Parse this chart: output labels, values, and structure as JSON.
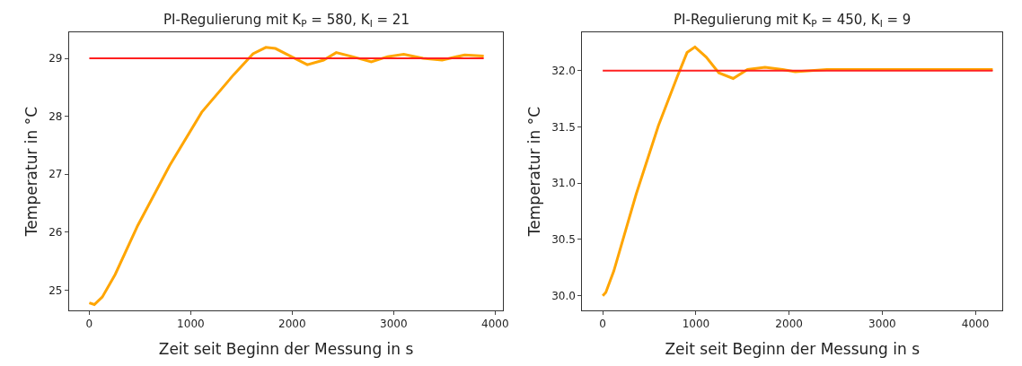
{
  "chart_data": [
    {
      "type": "line",
      "title": "PI-Regulierung mit K$_{P}$ = 580, K$_{I}$ = 21",
      "xlabel": "Zeit seit Beginn der Messung in s",
      "ylabel": "Temperatur in °C",
      "xlim": [
        -200,
        4080
      ],
      "ylim": [
        24.65,
        29.45
      ],
      "xticks": [
        0,
        1000,
        2000,
        3000,
        4000
      ],
      "yticks": [
        25,
        26,
        27,
        28,
        29
      ],
      "grid": false,
      "marker": "none",
      "line_style": "solid",
      "series": [
        {
          "color": "#ffa500",
          "x": [
            0,
            50,
            128,
            255,
            476,
            792,
            1108,
            1424,
            1614,
            1740,
            1835,
            1992,
            2149,
            2309,
            2434,
            2593,
            2780,
            2941,
            3100,
            3290,
            3478,
            3700,
            3888
          ],
          "values": [
            24.78,
            24.75,
            24.88,
            25.27,
            26.11,
            27.15,
            28.07,
            28.72,
            29.08,
            29.19,
            29.17,
            29.03,
            28.89,
            28.97,
            29.1,
            29.03,
            28.94,
            29.03,
            29.07,
            29.0,
            28.97,
            29.06,
            29.04
          ]
        },
        {
          "color": "#ff2020",
          "x": [
            0,
            3888
          ],
          "values": [
            29,
            29
          ]
        }
      ]
    },
    {
      "type": "line",
      "title": "PI-Regulierung mit K$_{P}$ = 450, K$_{I}$ = 9",
      "xlabel": "Zeit seit Beginn der Messung in s",
      "ylabel": "Temperatur in °C",
      "xlim": [
        -220,
        4290
      ],
      "ylim": [
        29.87,
        32.34
      ],
      "xticks": [
        0,
        1000,
        2000,
        3000,
        4000
      ],
      "yticks": [
        {
          "value": 30,
          "label": "30.0"
        },
        {
          "value": 30.5,
          "label": "30.5"
        },
        {
          "value": 31,
          "label": "31.0"
        },
        {
          "value": 31.5,
          "label": "31.5"
        },
        {
          "value": 32,
          "label": "32.0"
        }
      ],
      "grid": false,
      "marker": "none",
      "line_style": "solid",
      "series": [
        {
          "color": "#ffa500",
          "x": [
            0,
            33,
            119,
            358,
            597,
            802,
            905,
            990,
            1110,
            1246,
            1400,
            1554,
            1742,
            1930,
            2066,
            2406,
            3092,
            3774,
            4186
          ],
          "values": [
            30.0,
            30.03,
            30.22,
            30.9,
            31.51,
            31.95,
            32.16,
            32.21,
            32.12,
            31.98,
            31.93,
            32.01,
            32.03,
            32.01,
            31.99,
            32.01,
            32.01,
            32.01,
            32.01
          ]
        },
        {
          "color": "#ff2020",
          "x": [
            0,
            4186
          ],
          "values": [
            32,
            32
          ]
        }
      ]
    }
  ]
}
